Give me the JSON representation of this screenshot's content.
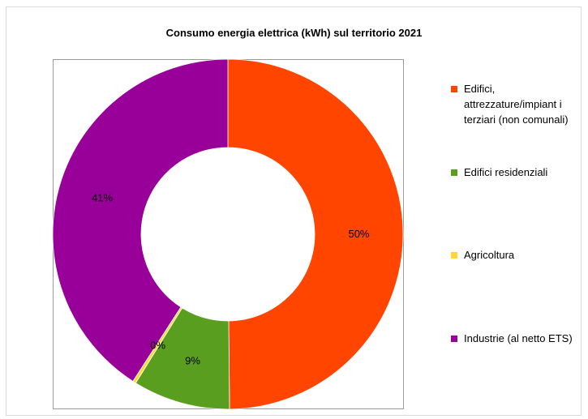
{
  "chart_data": {
    "type": "pie",
    "title": "Consumo energia elettrica (kWh) sul territorio 2021",
    "categories": [
      "Edifici, attrezzature/impiant i terziari (non comunali)",
      "Edifici residenziali",
      "Agricoltura",
      "Industrie (al netto ETS)"
    ],
    "values": [
      50,
      9,
      0.3,
      41
    ],
    "data_labels": [
      "50%",
      "9%",
      "0%",
      "41%"
    ],
    "colors": [
      "#FF4500",
      "#5A9E1F",
      "#FFD633",
      "#990099"
    ],
    "legend_placement": "right"
  }
}
